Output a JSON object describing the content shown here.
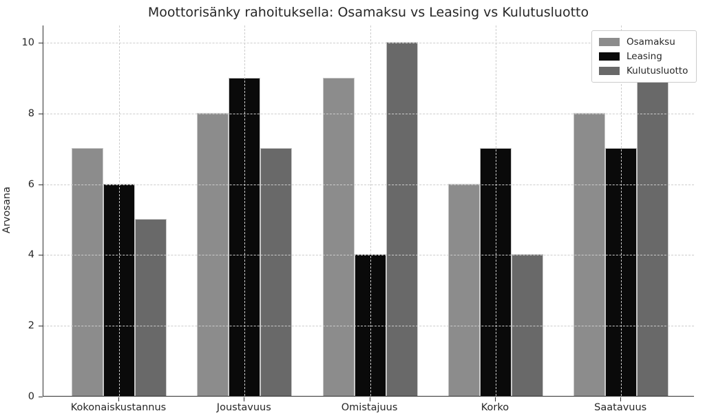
{
  "chart_data": {
    "type": "bar",
    "title": "Moottorisänky rahoituksella: Osamaksu vs Leasing vs Kulutusluotto",
    "xlabel": "",
    "ylabel": "Arvosana",
    "categories": [
      "Kokonaiskustannus",
      "Joustavuus",
      "Omistajuus",
      "Korko",
      "Saatavuus"
    ],
    "series": [
      {
        "name": "Osamaksu",
        "color": "#8c8c8c",
        "values": [
          7,
          8,
          9,
          6,
          8
        ]
      },
      {
        "name": "Leasing",
        "color": "#0a0a0a",
        "values": [
          6,
          9,
          4,
          7,
          7
        ]
      },
      {
        "name": "Kulutusluotto",
        "color": "#696969",
        "values": [
          5,
          7,
          10,
          4,
          9
        ]
      }
    ],
    "ylim": [
      0,
      10.5
    ],
    "yticks": [
      0,
      2,
      4,
      6,
      8,
      10
    ],
    "grid": {
      "on": true,
      "style": "dashed",
      "color": "#cccccc",
      "axes": "both",
      "above_bars": true
    },
    "legend": {
      "position": "upper right"
    },
    "colors": {
      "spine": "#2e2e2e",
      "text": "#262626",
      "bar_edge": "#c9c9c9",
      "background": "#ffffff"
    }
  }
}
